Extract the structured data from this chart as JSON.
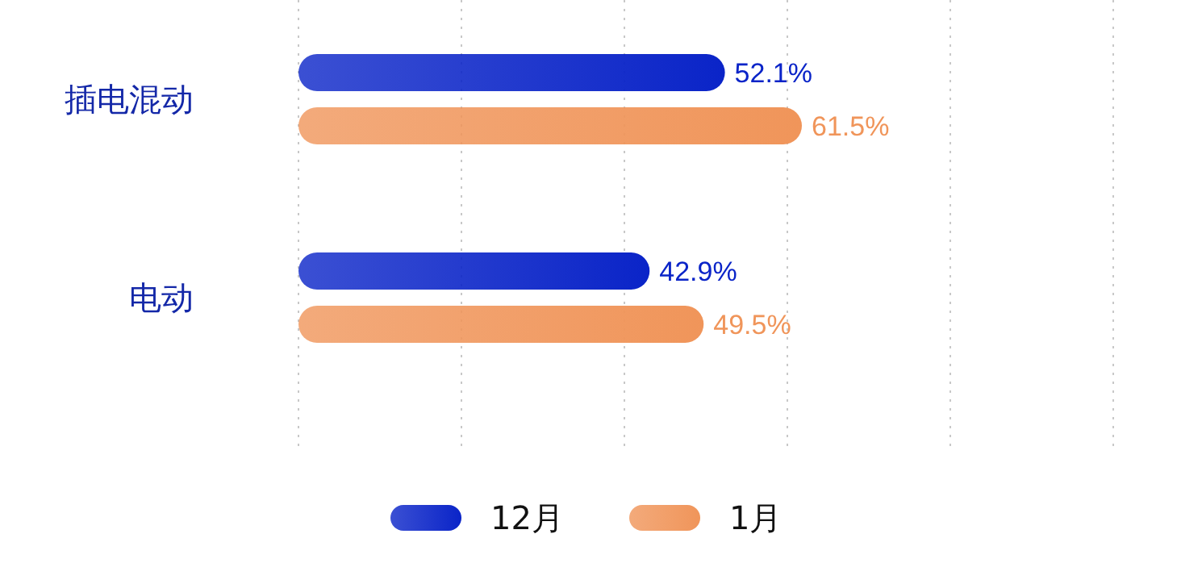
{
  "chart_data": {
    "type": "bar",
    "orientation": "horizontal",
    "categories": [
      "插电混动",
      "电动"
    ],
    "series": [
      {
        "name": "12月",
        "color": "#0a24c8",
        "values": [
          52.1,
          42.9
        ],
        "value_labels": [
          "52.1%",
          "42.9%"
        ]
      },
      {
        "name": "1月",
        "color": "#f0955a",
        "values": [
          61.5,
          49.5
        ],
        "value_labels": [
          "61.5%",
          "49.5%"
        ]
      }
    ],
    "tick_labels": "y",
    "grid": "x",
    "legend": "bottom"
  }
}
